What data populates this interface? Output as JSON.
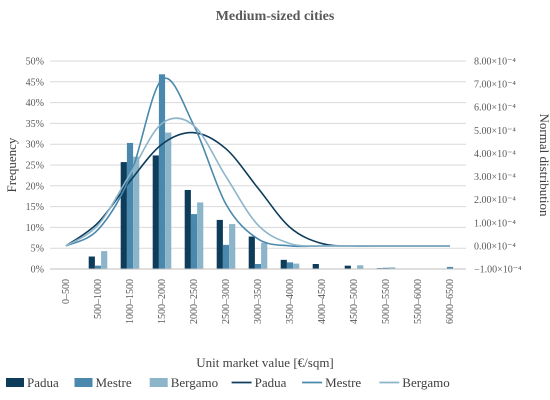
{
  "chart_data": {
    "type": "bar",
    "title": "Medium-sized cities",
    "xlabel": "Unit market value [€/sqm]",
    "ylabel": "Frequency",
    "y2label": "Normal distribution",
    "categories": [
      "0–500",
      "500–1000",
      "1000–1500",
      "1500–2000",
      "2000–2500",
      "2500–3000",
      "3000–3500",
      "3500–4000",
      "4000–4500",
      "4500–5000",
      "5000–5500",
      "5500–6000",
      "6000–6500"
    ],
    "ylim": [
      0,
      50
    ],
    "yticks": [
      "0%",
      "5%",
      "10%",
      "15%",
      "20%",
      "25%",
      "30%",
      "35%",
      "40%",
      "45%",
      "50%"
    ],
    "y2lim": [
      -0.0001,
      0.0008
    ],
    "y2ticks": [
      "−1.00×10⁻⁴",
      "0.00×10⁻⁴",
      "1.00×10⁻⁴",
      "2.00×10⁻⁴",
      "3.00×10⁻⁴",
      "4.00×10⁻⁴",
      "5.00×10⁻⁴",
      "6.00×10⁻⁴",
      "7.00×10⁻⁴",
      "8.00×10⁻⁴"
    ],
    "grid": true,
    "legend_position": "bottom",
    "bar_series": [
      {
        "name": "Padua",
        "color": "#0e3d5b",
        "values": [
          0,
          3.0,
          25.7,
          27.3,
          19.0,
          11.8,
          7.8,
          2.2,
          1.2,
          0.8,
          0.2,
          0,
          0
        ]
      },
      {
        "name": "Mestre",
        "color": "#4a88ad",
        "values": [
          0,
          0.8,
          30.3,
          46.8,
          13.2,
          5.8,
          1.2,
          1.6,
          0,
          0,
          0.3,
          0,
          0.5
        ]
      },
      {
        "name": "Bergamo",
        "color": "#8db5ca",
        "values": [
          0,
          4.3,
          27.0,
          32.8,
          16.0,
          10.8,
          6.3,
          1.3,
          0,
          0.9,
          0.4,
          0,
          0
        ]
      }
    ],
    "line_series": [
      {
        "name": "Padua",
        "color": "#0e3d5b",
        "values": [
          0.0,
          0.0001,
          0.00028,
          0.00044,
          0.00049,
          0.00042,
          0.00025,
          8e-05,
          1e-05,
          0.0,
          0.0,
          0.0,
          0.0
        ]
      },
      {
        "name": "Mestre",
        "color": "#4a88ad",
        "values": [
          0.0,
          7e-05,
          0.0003,
          0.00072,
          0.00052,
          0.00018,
          3e-05,
          0.0,
          0.0,
          0.0,
          0.0,
          0.0,
          0.0
        ]
      },
      {
        "name": "Bergamo",
        "color": "#8db5ca",
        "values": [
          0.0,
          9e-05,
          0.00031,
          0.00053,
          0.00052,
          0.0003,
          9e-05,
          1e-05,
          0.0,
          0.0,
          0.0,
          0.0,
          0.0
        ]
      }
    ]
  }
}
